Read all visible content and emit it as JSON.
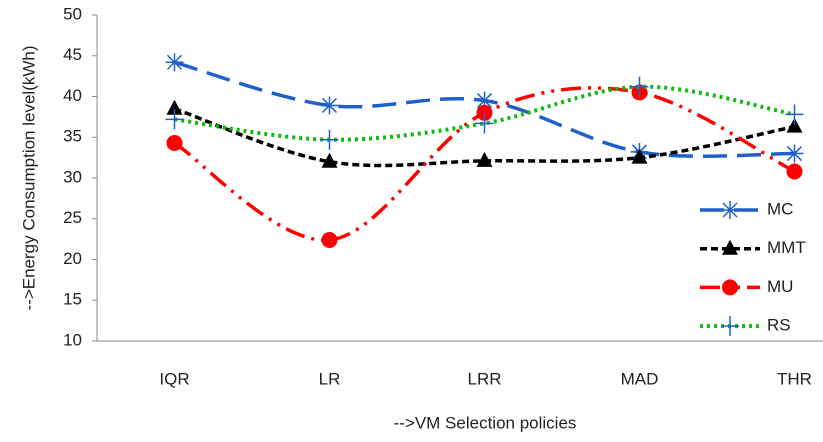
{
  "chart_data": {
    "type": "line",
    "x_label": "-->VM Selection policies",
    "y_label": "-->Energy Consumption level(kWh)",
    "categories": [
      "IQR",
      "LR",
      "LRR",
      "MAD",
      "THR"
    ],
    "series": [
      {
        "name": "MC",
        "color": "#1f5fc8",
        "marker": "asterisk",
        "values": [
          44.2,
          38.9,
          39.5,
          33.2,
          33.0
        ]
      },
      {
        "name": "MMT",
        "color": "#000000",
        "marker": "triangle",
        "values": [
          38.5,
          32.0,
          32.1,
          32.5,
          36.3
        ]
      },
      {
        "name": "MU",
        "color": "#ff0000",
        "marker": "circle",
        "values": [
          34.3,
          22.4,
          38.0,
          40.5,
          30.8
        ]
      },
      {
        "name": "RS",
        "color": "#11b911",
        "marker": "plus",
        "values": [
          37.2,
          34.7,
          36.7,
          41.2,
          37.8
        ]
      }
    ],
    "ylim": [
      10,
      50
    ],
    "yticks": [
      10,
      15,
      20,
      25,
      30,
      35,
      40,
      45,
      50
    ],
    "grid": false,
    "legend": "right"
  }
}
